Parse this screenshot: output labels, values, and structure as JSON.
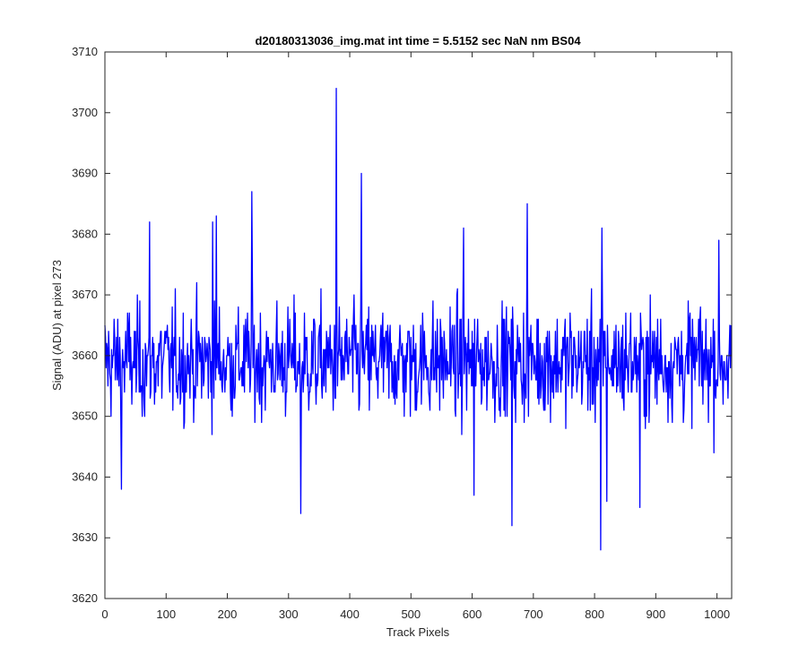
{
  "chart_data": {
    "type": "line",
    "title": "d20180313036_img.mat int time = 5.5152 sec  NaN nm BS04",
    "xlabel": "Track Pixels",
    "ylabel": "Signal (ADU) at pixel 273",
    "xlim": [
      0,
      1024
    ],
    "ylim": [
      3620,
      3710
    ],
    "xticks": [
      0,
      100,
      200,
      300,
      400,
      500,
      600,
      700,
      800,
      900,
      1000
    ],
    "yticks": [
      3620,
      3630,
      3640,
      3650,
      3660,
      3670,
      3680,
      3690,
      3700,
      3710
    ],
    "xtick_labels": [
      "0",
      "100",
      "200",
      "300",
      "400",
      "500",
      "600",
      "700",
      "800",
      "900",
      "1000"
    ],
    "ytick_labels": [
      "3620",
      "3630",
      "3640",
      "3650",
      "3660",
      "3670",
      "3680",
      "3690",
      "3700",
      "3710"
    ],
    "grid": false,
    "line_color": "#0000ff",
    "series": [
      {
        "n_points": 1024,
        "x_start": 0,
        "x_step": 1,
        "values_approx_mean": 3659,
        "notable_points": [
          {
            "x": 378,
            "y": 3704
          },
          {
            "x": 419,
            "y": 3690
          },
          {
            "x": 240,
            "y": 3687
          },
          {
            "x": 690,
            "y": 3685
          },
          {
            "x": 182,
            "y": 3683
          },
          {
            "x": 73,
            "y": 3682
          },
          {
            "x": 176,
            "y": 3682
          },
          {
            "x": 586,
            "y": 3681
          },
          {
            "x": 812,
            "y": 3681
          },
          {
            "x": 1003,
            "y": 3679
          },
          {
            "x": 320,
            "y": 3634
          },
          {
            "x": 665,
            "y": 3632
          },
          {
            "x": 810,
            "y": 3628
          },
          {
            "x": 27,
            "y": 3638
          },
          {
            "x": 603,
            "y": 3637
          },
          {
            "x": 820,
            "y": 3636
          },
          {
            "x": 874,
            "y": 3635
          }
        ]
      }
    ]
  }
}
